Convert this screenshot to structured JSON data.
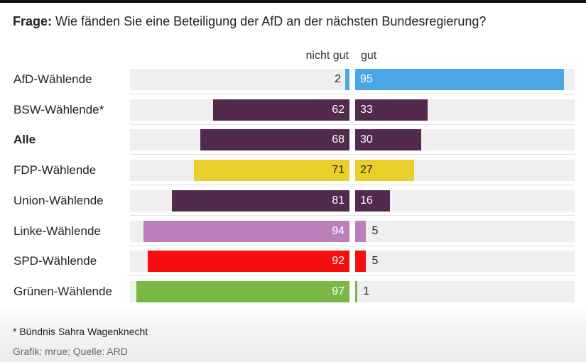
{
  "title": {
    "prefix": "Frage:",
    "text": "Wie fänden Sie eine Beteiligung der AfD an der nächsten Bundesregierung?"
  },
  "colors": {
    "afd": "#4aa6e6",
    "purple": "#522a4e",
    "yellow": "#e8cf2c",
    "linke": "#bd7fbb",
    "spd": "#f70e0e",
    "gruene": "#7ab845",
    "track": "#efefef"
  },
  "chart_data": {
    "type": "bar",
    "orientation": "horizontal-diverging",
    "title": "Frage: Wie fänden Sie eine Beteiligung der AfD an der nächsten Bundesregierung?",
    "series": [
      {
        "name": "nicht gut",
        "values": [
          2,
          62,
          68,
          71,
          81,
          94,
          92,
          97
        ]
      },
      {
        "name": "gut",
        "values": [
          95,
          33,
          30,
          27,
          16,
          5,
          5,
          1
        ]
      }
    ],
    "categories": [
      "AfD-Wählende",
      "BSW-Wählende*",
      "Alle",
      "FDP-Wählende",
      "Union-Wählende",
      "Linke-Wählende",
      "SPD-Wählende",
      "Grünen-Wählende"
    ],
    "rows": [
      {
        "label": "AfD-Wählende",
        "neg": 2,
        "pos": 95,
        "color": "#4aa6e6",
        "bold": false
      },
      {
        "label": "BSW-Wählende*",
        "neg": 62,
        "pos": 33,
        "color": "#522a4e",
        "bold": false
      },
      {
        "label": "Alle",
        "neg": 68,
        "pos": 30,
        "color": "#522a4e",
        "bold": true
      },
      {
        "label": "FDP-Wählende",
        "neg": 71,
        "pos": 27,
        "color": "#e8cf2c",
        "bold": false
      },
      {
        "label": "Union-Wählende",
        "neg": 81,
        "pos": 16,
        "color": "#522a4e",
        "bold": false
      },
      {
        "label": "Linke-Wählende",
        "neg": 94,
        "pos": 5,
        "color": "#bd7fbb",
        "bold": false
      },
      {
        "label": "SPD-Wählende",
        "neg": 92,
        "pos": 5,
        "color": "#f70e0e",
        "bold": false
      },
      {
        "label": "Grünen-Wählende",
        "neg": 97,
        "pos": 1,
        "color": "#7ab845",
        "bold": false
      }
    ],
    "xlim": [
      0,
      100
    ],
    "legend": {
      "negative": "nicht gut",
      "positive": "gut"
    }
  },
  "footnote": "* Bündnis Sahra Wagenknecht",
  "source": "Grafik: mrue; Quelle: ARD"
}
